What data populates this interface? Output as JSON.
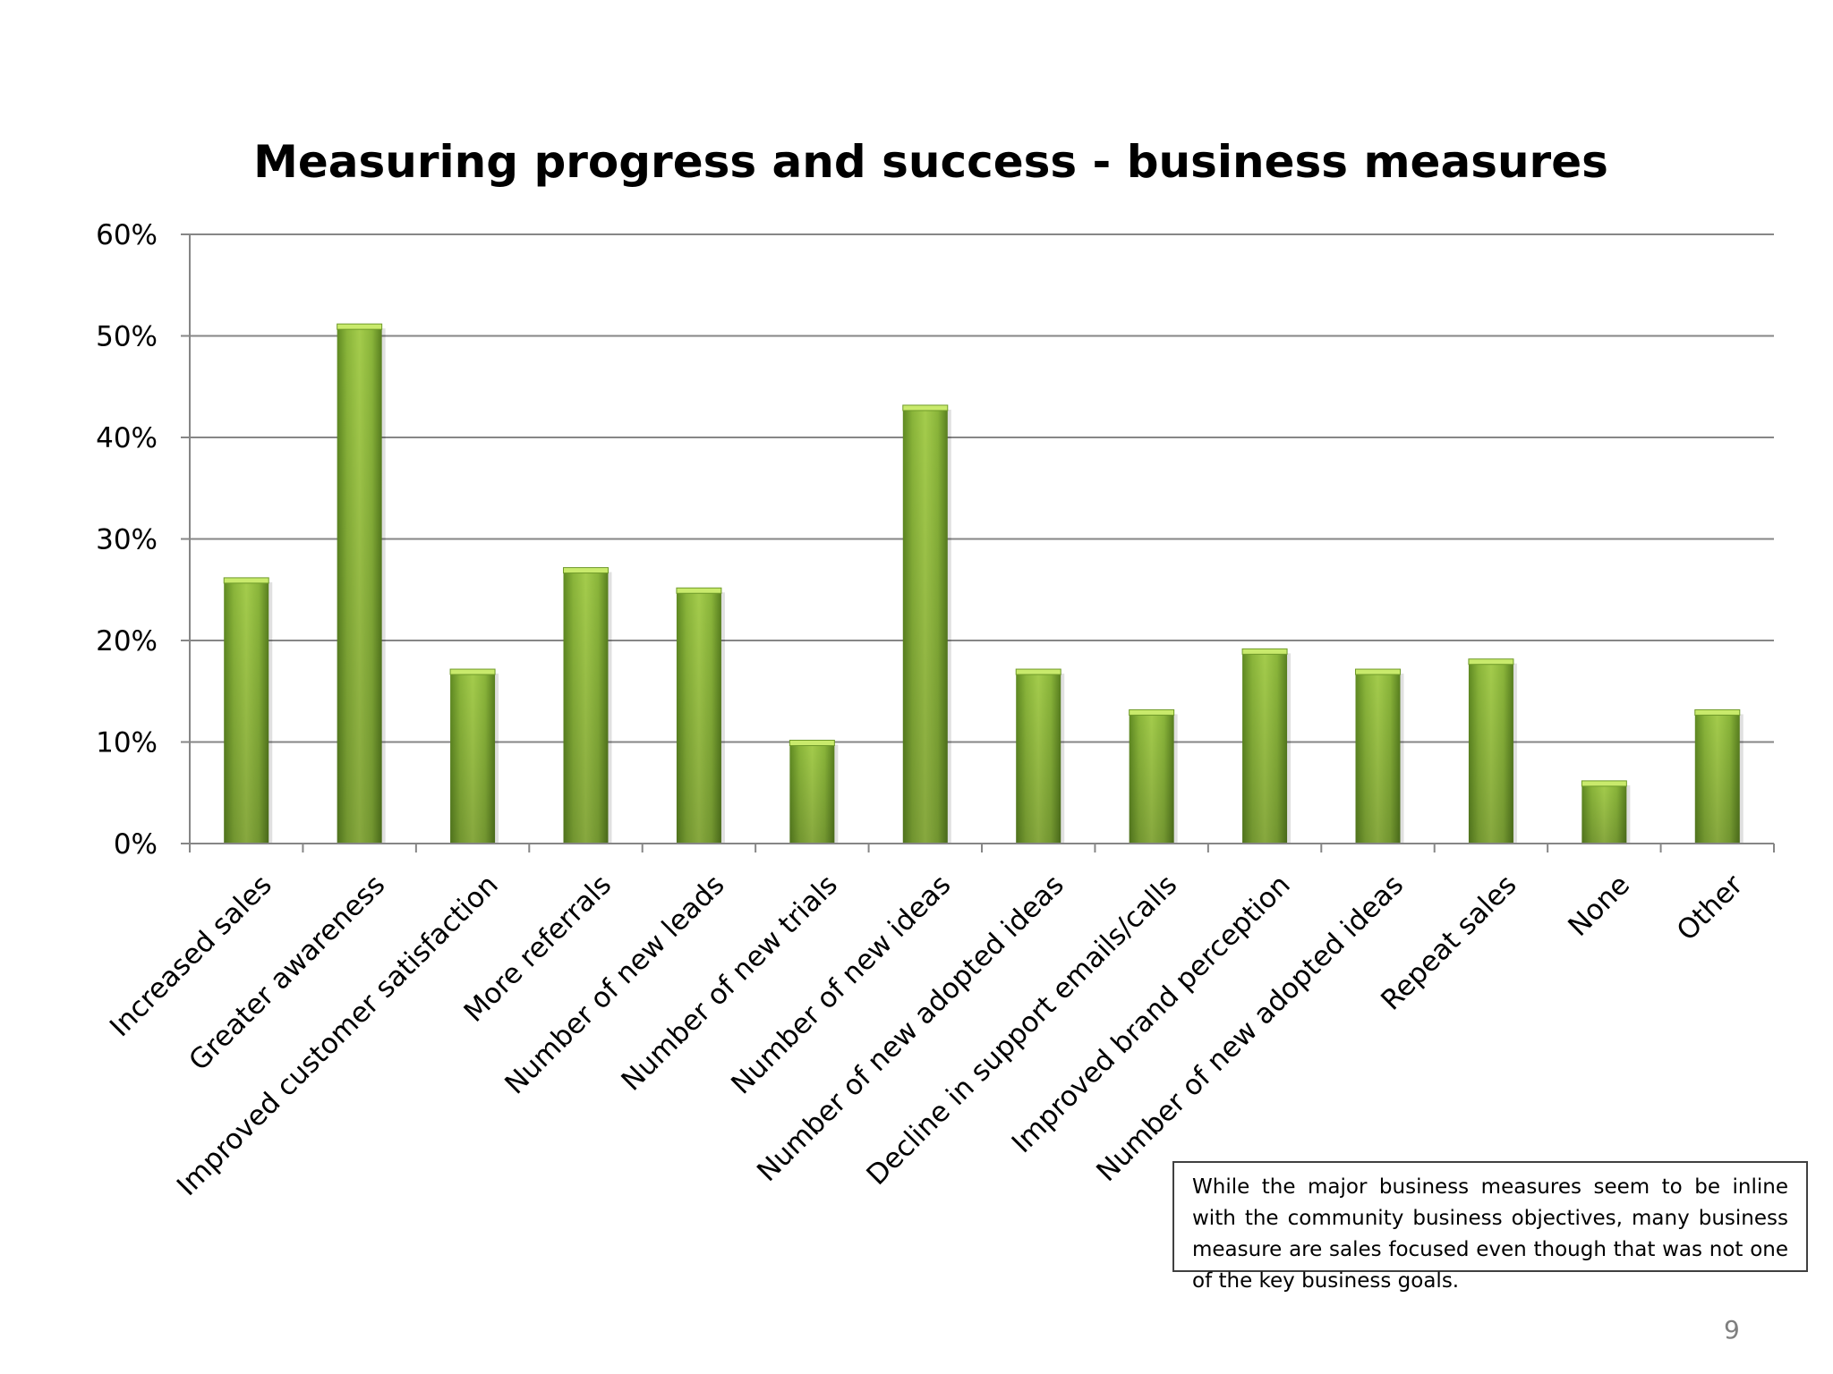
{
  "chart_data": {
    "type": "bar",
    "title": "Measuring progress and success - business measures",
    "categories": [
      "Increased sales",
      "Greater awareness",
      "Improved customer satisfaction",
      "More referrals",
      "Number of new leads",
      "Number of new trials",
      "Number of new ideas",
      "Number of new adopted ideas",
      "Decline in support emails/calls",
      "Improved brand perception",
      "Number of new adopted ideas",
      "Repeat sales",
      "None",
      "Other"
    ],
    "values": [
      26,
      51,
      17,
      27,
      25,
      10,
      43,
      17,
      13,
      19,
      17,
      18,
      6,
      13
    ],
    "ylim": [
      0,
      60
    ],
    "yticks": [
      0,
      10,
      20,
      30,
      40,
      50,
      60
    ],
    "ytick_labels": [
      "0%",
      "10%",
      "20%",
      "30%",
      "40%",
      "50%",
      "60%"
    ],
    "xlabel": "",
    "ylabel": "",
    "grid": true,
    "bar_color": "#8ab53a",
    "gridline_color": "#868686"
  },
  "note": "While the major business measures seem to be inline with the community business objectives, many business measure are sales focused even though that was not one of the key business goals.",
  "page_number": "9"
}
